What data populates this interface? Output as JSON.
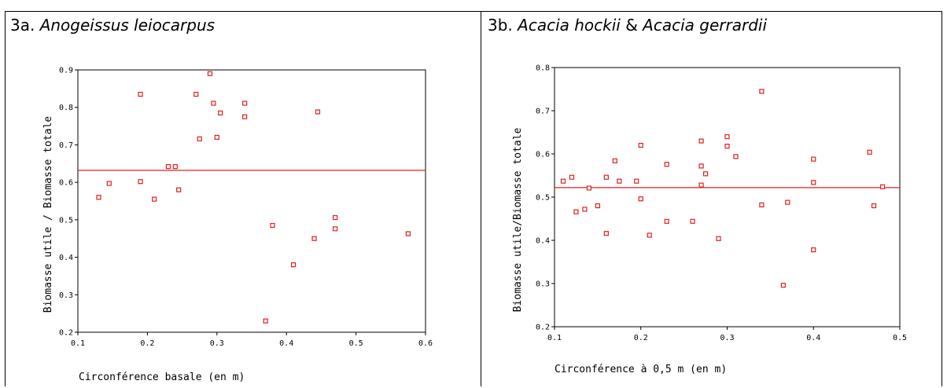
{
  "chart_data": [
    {
      "type": "scatter",
      "title_prefix": "3a.",
      "title_species": "Anogeissus leiocarpus",
      "title_joiner": "",
      "title_species2": "",
      "xlabel": "Circonférence basale (en m)",
      "ylabel": "Biomasse utile / Biomasse totale",
      "xlim": [
        0.1,
        0.6
      ],
      "ylim": [
        0.2,
        0.9
      ],
      "xticks": [
        0.1,
        0.2,
        0.3,
        0.4,
        0.5,
        0.6
      ],
      "xtick_labels": [
        "0.1",
        "0.2",
        "0.3",
        "0.4",
        "0.5",
        "0.6"
      ],
      "yticks": [
        0.2,
        0.3,
        0.4,
        0.5,
        0.6,
        0.7,
        0.8,
        0.9
      ],
      "ytick_labels": [
        "0.2",
        "0.3",
        "0.4",
        "0.5",
        "0.6",
        "0.7",
        "0.8",
        "0.9"
      ],
      "mean_line": 0.632,
      "marker_color": "#e02020",
      "line_color": "#e02020",
      "points": [
        [
          0.13,
          0.56
        ],
        [
          0.145,
          0.597
        ],
        [
          0.19,
          0.835
        ],
        [
          0.19,
          0.602
        ],
        [
          0.21,
          0.555
        ],
        [
          0.23,
          0.642
        ],
        [
          0.24,
          0.642
        ],
        [
          0.245,
          0.58
        ],
        [
          0.27,
          0.835
        ],
        [
          0.275,
          0.716
        ],
        [
          0.29,
          0.89
        ],
        [
          0.295,
          0.811
        ],
        [
          0.3,
          0.72
        ],
        [
          0.305,
          0.785
        ],
        [
          0.34,
          0.811
        ],
        [
          0.34,
          0.775
        ],
        [
          0.37,
          0.23
        ],
        [
          0.38,
          0.485
        ],
        [
          0.41,
          0.38
        ],
        [
          0.44,
          0.45
        ],
        [
          0.445,
          0.788
        ],
        [
          0.47,
          0.506
        ],
        [
          0.47,
          0.476
        ],
        [
          0.575,
          0.463
        ]
      ]
    },
    {
      "type": "scatter",
      "title_prefix": "3b.",
      "title_species": "Acacia hockii",
      "title_joiner": "&",
      "title_species2": "Acacia gerrardii",
      "xlabel": "Circonférence à 0,5 m (en m)",
      "ylabel": "Biomasse utile/Biomasse totale",
      "xlim": [
        0.1,
        0.5
      ],
      "ylim": [
        0.2,
        0.8
      ],
      "xticks": [
        0.1,
        0.2,
        0.3,
        0.4,
        0.5
      ],
      "xtick_labels": [
        "0.1",
        "0.2",
        "0.3",
        "0.4",
        "0.5"
      ],
      "yticks": [
        0.2,
        0.3,
        0.4,
        0.5,
        0.6,
        0.7,
        0.8
      ],
      "ytick_labels": [
        "0.2",
        "0.3",
        "0.4",
        "0.5",
        "0.6",
        "0.7",
        "0.8"
      ],
      "mean_line": 0.522,
      "marker_color": "#e02020",
      "line_color": "#e02020",
      "points": [
        [
          0.11,
          0.537
        ],
        [
          0.12,
          0.546
        ],
        [
          0.125,
          0.466
        ],
        [
          0.135,
          0.472
        ],
        [
          0.14,
          0.521
        ],
        [
          0.15,
          0.48
        ],
        [
          0.16,
          0.546
        ],
        [
          0.16,
          0.416
        ],
        [
          0.17,
          0.584
        ],
        [
          0.175,
          0.537
        ],
        [
          0.195,
          0.537
        ],
        [
          0.2,
          0.62
        ],
        [
          0.2,
          0.496
        ],
        [
          0.21,
          0.412
        ],
        [
          0.23,
          0.576
        ],
        [
          0.23,
          0.444
        ],
        [
          0.26,
          0.444
        ],
        [
          0.27,
          0.63
        ],
        [
          0.27,
          0.572
        ],
        [
          0.27,
          0.528
        ],
        [
          0.275,
          0.554
        ],
        [
          0.29,
          0.404
        ],
        [
          0.3,
          0.64
        ],
        [
          0.3,
          0.618
        ],
        [
          0.31,
          0.594
        ],
        [
          0.34,
          0.745
        ],
        [
          0.34,
          0.482
        ],
        [
          0.365,
          0.296
        ],
        [
          0.37,
          0.488
        ],
        [
          0.4,
          0.588
        ],
        [
          0.4,
          0.534
        ],
        [
          0.4,
          0.378
        ],
        [
          0.465,
          0.604
        ],
        [
          0.47,
          0.48
        ],
        [
          0.48,
          0.524
        ]
      ]
    }
  ]
}
